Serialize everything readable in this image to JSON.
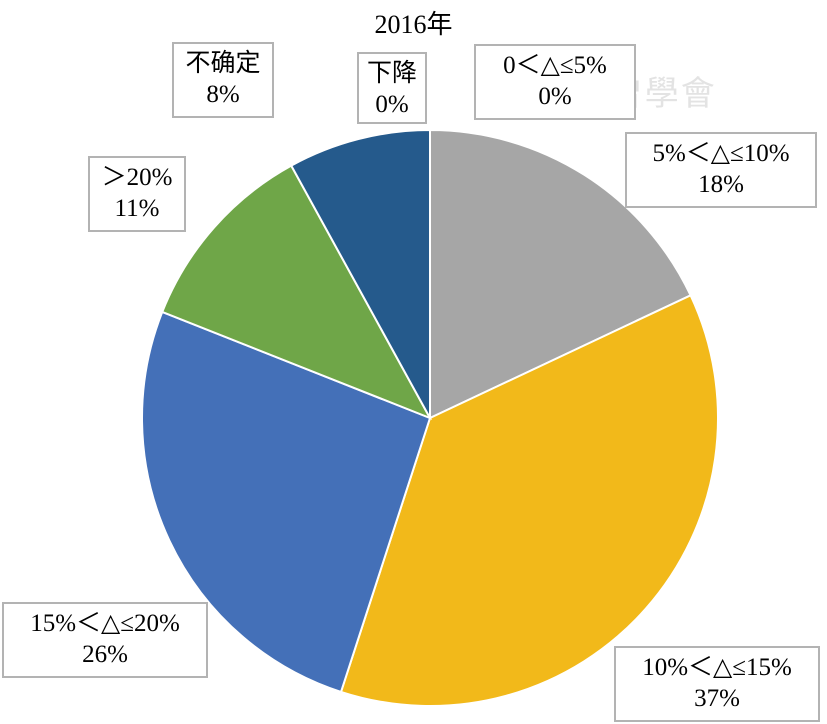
{
  "chart_data": {
    "type": "pie",
    "title": "2016年",
    "slices": [
      {
        "label": "下降",
        "display_value": "0%",
        "value": 0.0,
        "color": "#255a8c"
      },
      {
        "label": "0＜△≤5%",
        "display_value": "0%",
        "value": 0.0,
        "color": "#9e9e9e"
      },
      {
        "label": "5%＜△≤10%",
        "display_value": "18%",
        "value": 18,
        "color": "#a6a6a6"
      },
      {
        "label": "10%＜△≤15%",
        "display_value": "37%",
        "value": 37,
        "color": "#f2b91a"
      },
      {
        "label": "15%＜△≤20%",
        "display_value": "26%",
        "value": 26,
        "color": "#4470b8"
      },
      {
        "label": "＞20%",
        "display_value": "11%",
        "value": 11,
        "color": "#6fa648"
      },
      {
        "label": "不确定",
        "display_value": "8%",
        "value": 8,
        "color": "#255a8c"
      }
    ],
    "start_angle_deg": 0,
    "direction": "clockwise"
  }
}
